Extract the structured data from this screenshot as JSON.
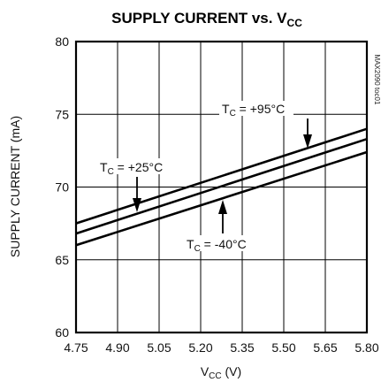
{
  "chart_data": {
    "type": "line",
    "title": {
      "main": "SUPPLY CURRENT vs. V",
      "sub": "CC"
    },
    "xlabel": {
      "main": "V",
      "sub": "CC",
      "unit": " (V)"
    },
    "ylabel": "SUPPLY CURRENT (mA)",
    "xlim": [
      4.75,
      5.8
    ],
    "ylim": [
      60,
      80
    ],
    "xticks": [
      "4.75",
      "4.90",
      "5.05",
      "5.20",
      "5.35",
      "5.50",
      "5.65",
      "5.80"
    ],
    "yticks": [
      "60",
      "65",
      "70",
      "75",
      "80"
    ],
    "grid": true,
    "part_number": "MAX2090 toc01",
    "x": [
      4.75,
      5.8
    ],
    "series": [
      {
        "name": "TC = +95°C",
        "values": [
          67.5,
          74.0
        ]
      },
      {
        "name": "TC = +25°C",
        "values": [
          66.8,
          73.3
        ]
      },
      {
        "name": "TC = -40°C",
        "values": [
          66.0,
          72.4
        ]
      }
    ],
    "annotations": [
      {
        "pre": "T",
        "sub": "C",
        "post": " = +95°C"
      },
      {
        "pre": "T",
        "sub": "C",
        "post": " = +25°C"
      },
      {
        "pre": "T",
        "sub": "C",
        "post": " = -40°C"
      }
    ]
  }
}
